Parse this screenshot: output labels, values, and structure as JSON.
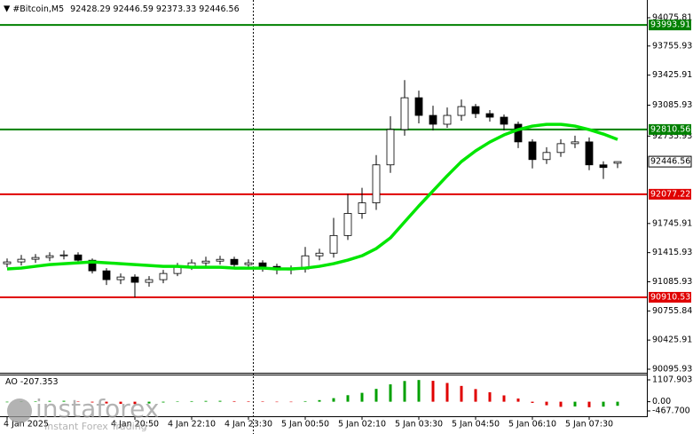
{
  "header": {
    "symbol": "#Bitcoin,M5",
    "ohlc": [
      92428.29,
      92446.59,
      92373.33,
      92446.56
    ]
  },
  "watermark": {
    "brand": "instaforex",
    "tagline": "Instant Forex Trading"
  },
  "chart_data": [
    {
      "type": "candlestick",
      "categories": [
        "4 Jan 2025",
        null,
        null,
        null,
        null,
        null,
        null,
        null,
        null,
        "4 Jan 20:50",
        null,
        null,
        null,
        "4 Jan 22:10",
        null,
        null,
        null,
        "4 Jan 23:30",
        null,
        null,
        null,
        "5 Jan 00:50",
        null,
        null,
        null,
        "5 Jan 02:10",
        null,
        null,
        null,
        "5 Jan 03:30",
        null,
        null,
        null,
        "5 Jan 04:50",
        null,
        null,
        null,
        "5 Jan 06:10",
        null,
        null,
        null,
        "5 Jan 07:30",
        null,
        null
      ],
      "open": [
        91290,
        91311,
        91341,
        91361,
        91381,
        91390,
        91330,
        91210,
        91110,
        91140,
        91080,
        91110,
        91180,
        91260,
        91300,
        91320,
        91340,
        91280,
        91300,
        91260,
        91220,
        91230,
        91380,
        91410,
        91610,
        91860,
        91980,
        92410,
        92810,
        93170,
        92970,
        92870,
        92970,
        93070,
        92990,
        92950,
        92870,
        92670,
        92470,
        92550,
        92650,
        92670,
        92410,
        92428.29
      ],
      "high": [
        91350,
        91390,
        91400,
        91420,
        91440,
        91420,
        91350,
        91240,
        91180,
        91170,
        91150,
        91220,
        91300,
        91340,
        91370,
        91380,
        91370,
        91340,
        91330,
        91290,
        91270,
        91480,
        91460,
        91810,
        92080,
        92150,
        92520,
        92960,
        93370,
        93250,
        93080,
        93060,
        93150,
        93100,
        93030,
        92980,
        92900,
        92700,
        92610,
        92700,
        92740,
        92720,
        92450,
        92446.59
      ],
      "low": [
        91250,
        91270,
        91300,
        91320,
        91340,
        91300,
        91180,
        91050,
        91060,
        90910,
        91030,
        91070,
        91150,
        91220,
        91260,
        91280,
        91230,
        91240,
        91200,
        91170,
        91170,
        91190,
        91330,
        91360,
        91560,
        91800,
        91900,
        92320,
        92740,
        92880,
        92800,
        92830,
        92910,
        92940,
        92900,
        92800,
        92600,
        92370,
        92420,
        92500,
        92600,
        92350,
        92250,
        92373.33
      ],
      "close": [
        91311,
        91341,
        91361,
        91381,
        91390,
        91330,
        91210,
        91110,
        91140,
        91080,
        91110,
        91180,
        91260,
        91300,
        91320,
        91340,
        91280,
        91300,
        91260,
        91220,
        91230,
        91380,
        91410,
        91610,
        91860,
        91980,
        92410,
        92810,
        93170,
        92970,
        92870,
        92970,
        93070,
        92990,
        92950,
        92870,
        92670,
        92470,
        92550,
        92650,
        92670,
        92410,
        92380,
        92446.56
      ],
      "up_color": "#ffffff",
      "down_color": "#000000",
      "ma": {
        "color": "#00e600",
        "values": [
          91231,
          91241,
          91261,
          91281,
          91291,
          91301,
          91311,
          91301,
          91291,
          91281,
          91271,
          91261,
          91261,
          91251,
          91251,
          91251,
          91241,
          91241,
          91241,
          91231,
          91231,
          91241,
          91261,
          91291,
          91331,
          91381,
          91462,
          91583,
          91764,
          91944,
          92115,
          92286,
          92447,
          92568,
          92668,
          92749,
          92809,
          92849,
          92869,
          92869,
          92849,
          92809,
          92759,
          92698
        ]
      },
      "levels": [
        {
          "value": 93993.91,
          "color": "#008000"
        },
        {
          "value": 92810.56,
          "color": "#008000"
        },
        {
          "value": 92077.22,
          "color": "#e00000"
        },
        {
          "value": 90910.53,
          "color": "#e00000"
        }
      ],
      "last_price": 92446.56,
      "ylim": [
        90055.7,
        94276.8
      ],
      "yticks": [
        94075.81,
        93755.93,
        93425.91,
        93085.93,
        92735.93,
        91745.91,
        91415.93,
        91085.93,
        90755.84,
        90425.91,
        90095.93
      ]
    },
    {
      "type": "bar",
      "title": "AO",
      "last_value": -207.353,
      "values": [
        -30,
        10,
        25,
        40,
        45,
        20,
        -40,
        -90,
        -110,
        -120,
        -90,
        -40,
        10,
        30,
        40,
        45,
        30,
        25,
        10,
        -10,
        -20,
        30,
        80,
        180,
        330,
        450,
        650,
        880,
        1050,
        1100,
        1060,
        950,
        800,
        640,
        480,
        320,
        160,
        -60,
        -180,
        -260,
        -240,
        -280,
        -250,
        -207.353
      ],
      "up_color": "#00a000",
      "down_color": "#e00000",
      "ylim": [
        -467.7,
        1107.903
      ],
      "yticks": [
        1107.903,
        {
          "value": 0,
          "label": "0.00"
        },
        {
          "value": -467.7,
          "label": "-467.700"
        }
      ]
    }
  ]
}
